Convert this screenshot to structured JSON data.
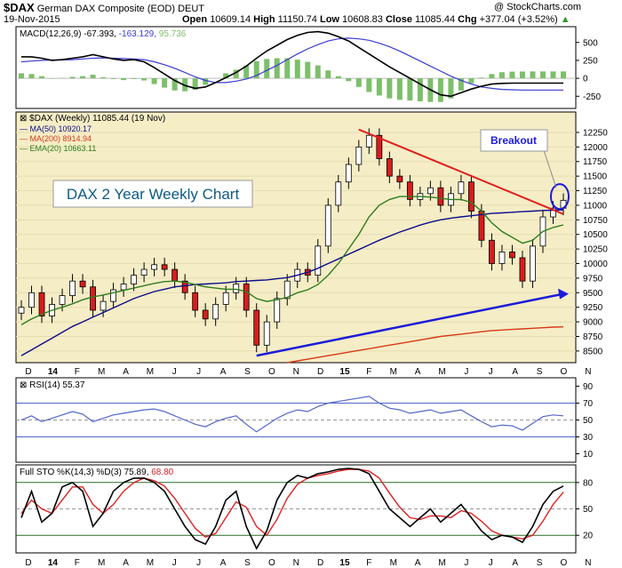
{
  "header": {
    "ticker": "$DAX",
    "name": "German DAX Composite (EOD)",
    "exchange": "DEUT",
    "date": "19-Nov-2015",
    "watermark": "@ StockCharts.com",
    "open_label": "Open",
    "open": "10609.14",
    "high_label": "High",
    "high": "11150.74",
    "low_label": "Low",
    "low": "10608.83",
    "close_label": "Close",
    "close": "11085.44",
    "chg_label": "Chg",
    "chg": "+377.04 (+3.52%)",
    "chg_arrow": "▲"
  },
  "colors": {
    "price_bg": "#f5edc6",
    "panel_bg": "#ffffff",
    "macd_line": "#000000",
    "signal_line": "#3a3ad0",
    "histogram": "#7cbf6a",
    "ma50": "#0d0d8a",
    "ma200": "#d63a1a",
    "ema20": "#2f7d1f",
    "up": "#ffffff",
    "down": "#d61e1e",
    "trend_red": "#e02020",
    "trend_blue": "#1c1cd8",
    "callout_text": "#1c1cd8",
    "title_box_text": "#0e5a86",
    "rsi_line": "#5266c7",
    "sto_k": "#000000",
    "sto_d": "#e02020"
  },
  "chart_data": [
    {
      "type": "line",
      "title": "MACD(12,26,9) -67.393, -163.129, 95.736",
      "legend": {
        "macd": "MACD(12,26,9)",
        "macd_value": "-67.393",
        "signal_value": "-163.129",
        "hist_value": "95.736"
      },
      "ylim": [
        -420,
        720
      ],
      "yticks": [
        500,
        250,
        0,
        -250
      ],
      "x": [
        0,
        2,
        4,
        6,
        8,
        10,
        12,
        14,
        16,
        18,
        20,
        22,
        24,
        26,
        28,
        30,
        32,
        34,
        36,
        38,
        40,
        42,
        44,
        46,
        48,
        50,
        52,
        54,
        56,
        58,
        60,
        62,
        64,
        66,
        68,
        70,
        72,
        74,
        76,
        78,
        80,
        82,
        84,
        86,
        88,
        90,
        92,
        94,
        96,
        98,
        100,
        102,
        104,
        106
      ],
      "series": [
        {
          "name": "MACD",
          "values": [
            300,
            300,
            280,
            250,
            260,
            280,
            300,
            330,
            300,
            270,
            250,
            260,
            230,
            150,
            60,
            -30,
            -100,
            -140,
            -120,
            -60,
            10,
            80,
            170,
            280,
            380,
            460,
            540,
            600,
            640,
            650,
            630,
            580,
            520,
            430,
            340,
            250,
            160,
            80,
            0,
            -80,
            -160,
            -230,
            -250,
            -200,
            -150,
            -110,
            -80,
            -70,
            -67,
            -67,
            -67,
            -67,
            -67,
            -67
          ]
        },
        {
          "name": "Signal",
          "values": [
            230,
            240,
            250,
            255,
            255,
            260,
            270,
            280,
            285,
            280,
            275,
            270,
            260,
            230,
            190,
            140,
            80,
            20,
            -30,
            -60,
            -60,
            -40,
            -10,
            40,
            110,
            180,
            260,
            340,
            410,
            470,
            520,
            550,
            560,
            550,
            530,
            490,
            440,
            380,
            310,
            240,
            170,
            100,
            30,
            -30,
            -80,
            -120,
            -140,
            -155,
            -160,
            -163,
            -163,
            -163,
            -163,
            -163
          ]
        },
        {
          "name": "Histogram",
          "values": [
            70,
            60,
            30,
            -5,
            5,
            20,
            30,
            50,
            15,
            -10,
            -25,
            -10,
            -30,
            -80,
            -130,
            -170,
            -180,
            -160,
            -90,
            0,
            70,
            120,
            180,
            240,
            270,
            280,
            280,
            260,
            230,
            180,
            110,
            30,
            -40,
            -120,
            -190,
            -240,
            -280,
            -300,
            -310,
            -320,
            -330,
            -330,
            -280,
            -170,
            -70,
            10,
            60,
            85,
            93,
            95,
            96,
            96,
            96,
            96
          ]
        }
      ]
    },
    {
      "type": "line",
      "title": "$DAX (Weekly) 11085.44 (19 Nov)",
      "legend": [
        {
          "label": "$DAX (Weekly)",
          "value": "11085.44 (19 Nov)"
        },
        {
          "label": "MA(50)",
          "value": "10920.17"
        },
        {
          "label": "MA(200)",
          "value": "8914.94"
        },
        {
          "label": "EMA(20)",
          "value": "10663.11"
        }
      ],
      "ylim": [
        8300,
        12600
      ],
      "yticks": [
        12250,
        12000,
        11750,
        11500,
        11250,
        11000,
        10750,
        10500,
        10250,
        10000,
        9750,
        9500,
        9250,
        9000,
        8750,
        8500
      ],
      "x_labels": [
        "D",
        "14",
        "F",
        "M",
        "A",
        "M",
        "J",
        "J",
        "A",
        "S",
        "O",
        "N",
        "D",
        "15",
        "F",
        "M",
        "A",
        "M",
        "J",
        "J",
        "A",
        "S",
        "O",
        "N"
      ],
      "x": [
        0,
        2,
        4,
        6,
        8,
        10,
        12,
        14,
        16,
        18,
        20,
        22,
        24,
        26,
        28,
        30,
        32,
        34,
        36,
        38,
        40,
        42,
        44,
        46,
        48,
        50,
        52,
        54,
        56,
        58,
        60,
        62,
        64,
        66,
        68,
        70,
        72,
        74,
        76,
        78,
        80,
        82,
        84,
        86,
        88,
        90,
        92,
        94,
        96,
        98,
        100,
        102,
        104,
        106
      ],
      "series": [
        {
          "name": "Close",
          "values": [
            9250,
            9500,
            9100,
            9300,
            9450,
            9700,
            9600,
            9200,
            9350,
            9550,
            9650,
            9800,
            9900,
            9980,
            9900,
            9700,
            9500,
            9200,
            9050,
            9300,
            9500,
            9650,
            9200,
            8600,
            9000,
            9400,
            9700,
            9900,
            9800,
            10300,
            11000,
            11400,
            11700,
            12000,
            12200,
            11800,
            11500,
            11400,
            11100,
            11200,
            11300,
            11000,
            11200,
            11400,
            10900,
            10400,
            10000,
            10200,
            10100,
            9700,
            10300,
            10800,
            10950,
            11085
          ]
        },
        {
          "name": "MA(50)",
          "values": [
            8420,
            8520,
            8620,
            8720,
            8820,
            8920,
            9000,
            9080,
            9160,
            9240,
            9320,
            9400,
            9460,
            9520,
            9560,
            9600,
            9620,
            9640,
            9650,
            9660,
            9670,
            9690,
            9700,
            9710,
            9720,
            9740,
            9760,
            9800,
            9850,
            9920,
            10000,
            10080,
            10160,
            10240,
            10320,
            10400,
            10470,
            10540,
            10600,
            10660,
            10710,
            10750,
            10780,
            10800,
            10820,
            10840,
            10860,
            10870,
            10880,
            10890,
            10900,
            10910,
            10915,
            10920
          ]
        },
        {
          "name": "EMA(20)",
          "values": [
            8950,
            9050,
            9130,
            9200,
            9250,
            9310,
            9380,
            9430,
            9460,
            9500,
            9540,
            9580,
            9620,
            9660,
            9690,
            9700,
            9680,
            9640,
            9600,
            9580,
            9560,
            9560,
            9520,
            9400,
            9350,
            9380,
            9420,
            9500,
            9550,
            9640,
            9800,
            10000,
            10250,
            10500,
            10800,
            11000,
            11100,
            11150,
            11150,
            11150,
            11140,
            11120,
            11100,
            11100,
            11050,
            10900,
            10700,
            10550,
            10450,
            10350,
            10400,
            10550,
            10620,
            10663
          ]
        },
        {
          "name": "MA(200)",
          "values": [
            null,
            null,
            null,
            null,
            null,
            null,
            null,
            null,
            null,
            null,
            null,
            null,
            null,
            null,
            null,
            null,
            null,
            null,
            null,
            null,
            null,
            null,
            null,
            null,
            null,
            null,
            8300,
            8330,
            8360,
            8390,
            8420,
            8450,
            8480,
            8510,
            8540,
            8570,
            8600,
            8630,
            8660,
            8690,
            8720,
            8750,
            8770,
            8790,
            8810,
            8830,
            8850,
            8860,
            8870,
            8880,
            8890,
            8900,
            8910,
            8915
          ]
        }
      ],
      "annotations": {
        "box_title": "DAX 2 Year Weekly Chart",
        "callout": "Breakout"
      }
    },
    {
      "type": "line",
      "title": "RSI(14) 55.37",
      "legend": {
        "label": "RSI(14)",
        "value": "55.37"
      },
      "ylim": [
        0,
        100
      ],
      "yticks": [
        90,
        70,
        50,
        30,
        10
      ],
      "x": [
        0,
        2,
        4,
        6,
        8,
        10,
        12,
        14,
        16,
        18,
        20,
        22,
        24,
        26,
        28,
        30,
        32,
        34,
        36,
        38,
        40,
        42,
        44,
        46,
        48,
        50,
        52,
        54,
        56,
        58,
        60,
        62,
        64,
        66,
        68,
        70,
        72,
        74,
        76,
        78,
        80,
        82,
        84,
        86,
        88,
        90,
        92,
        94,
        96,
        98,
        100,
        102,
        104,
        106
      ],
      "series": [
        {
          "name": "RSI",
          "values": [
            50,
            55,
            48,
            52,
            56,
            60,
            57,
            48,
            52,
            56,
            58,
            60,
            62,
            63,
            60,
            55,
            50,
            45,
            42,
            48,
            52,
            55,
            45,
            36,
            44,
            52,
            58,
            62,
            60,
            66,
            70,
            72,
            74,
            76,
            78,
            70,
            64,
            62,
            58,
            60,
            62,
            58,
            60,
            62,
            55,
            48,
            42,
            44,
            43,
            38,
            46,
            54,
            56,
            55
          ]
        }
      ]
    },
    {
      "type": "line",
      "title": "Full STO %K(14,3) %D(3) 75.89, 68.80",
      "legend": {
        "label": "Full STO %K(14,3) %D(3)",
        "k_value": "75.89",
        "d_value": "68.80"
      },
      "ylim": [
        0,
        100
      ],
      "yticks": [
        80,
        50,
        20
      ],
      "x": [
        0,
        2,
        4,
        6,
        8,
        10,
        12,
        14,
        16,
        18,
        20,
        22,
        24,
        26,
        28,
        30,
        32,
        34,
        36,
        38,
        40,
        42,
        44,
        46,
        48,
        50,
        52,
        54,
        56,
        58,
        60,
        62,
        64,
        66,
        68,
        70,
        72,
        74,
        76,
        78,
        80,
        82,
        84,
        86,
        88,
        90,
        92,
        94,
        96,
        98,
        100,
        102,
        104,
        106
      ],
      "series": [
        {
          "name": "%K",
          "values": [
            40,
            70,
            35,
            45,
            75,
            80,
            70,
            30,
            45,
            70,
            80,
            85,
            85,
            80,
            70,
            50,
            30,
            15,
            10,
            30,
            60,
            70,
            30,
            5,
            25,
            60,
            80,
            88,
            85,
            90,
            92,
            95,
            96,
            95,
            90,
            70,
            50,
            40,
            30,
            40,
            50,
            35,
            45,
            55,
            40,
            25,
            15,
            20,
            18,
            12,
            30,
            55,
            70,
            76
          ]
        },
        {
          "name": "%D",
          "values": [
            45,
            60,
            50,
            45,
            60,
            75,
            75,
            55,
            45,
            55,
            70,
            80,
            85,
            82,
            76,
            62,
            45,
            28,
            18,
            22,
            40,
            58,
            52,
            30,
            20,
            38,
            62,
            78,
            85,
            88,
            90,
            93,
            95,
            95,
            93,
            85,
            68,
            52,
            40,
            38,
            42,
            42,
            40,
            48,
            45,
            36,
            25,
            20,
            18,
            16,
            20,
            36,
            55,
            69
          ]
        }
      ]
    }
  ]
}
